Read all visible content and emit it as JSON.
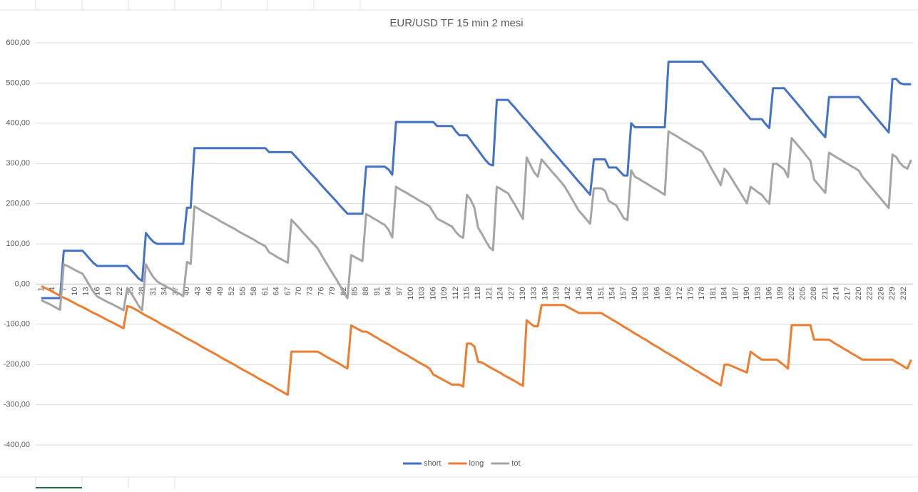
{
  "chart_data": {
    "type": "line",
    "title": "EUR/USD TF 15 min 2 mesi",
    "categories": [
      "1",
      null,
      null,
      "4",
      null,
      null,
      "7",
      null,
      null,
      "10",
      null,
      null,
      "13",
      null,
      null,
      "16",
      null,
      null,
      "19",
      null,
      null,
      "22",
      null,
      null,
      "25",
      null,
      null,
      "28",
      null,
      null,
      "31",
      null,
      null,
      "34",
      null,
      null,
      "37",
      null,
      null,
      "40",
      null,
      null,
      "43",
      null,
      null,
      "46",
      null,
      null,
      "49",
      null,
      null,
      "52",
      null,
      null,
      "55",
      null,
      null,
      "58",
      null,
      null,
      "61",
      null,
      null,
      "64",
      null,
      null,
      "67",
      null,
      null,
      "70",
      null,
      null,
      "73",
      null,
      null,
      "76",
      null,
      null,
      "79",
      null,
      null,
      "82",
      null,
      null,
      "85",
      null,
      null,
      "88",
      null,
      null,
      "91",
      null,
      null,
      "94",
      null,
      null,
      "97",
      null,
      null,
      "100",
      null,
      null,
      "103",
      null,
      null,
      "106",
      null,
      null,
      "109",
      null,
      null,
      "112",
      null,
      null,
      "115",
      null,
      null,
      "118",
      null,
      null,
      "121",
      null,
      null,
      "124",
      null,
      null,
      "127",
      null,
      null,
      "130",
      null,
      null,
      "133",
      null,
      null,
      "136",
      null,
      null,
      "139",
      null,
      null,
      "142",
      null,
      null,
      "145",
      null,
      null,
      "148",
      null,
      null,
      "151",
      null,
      null,
      "154",
      null,
      null,
      "157",
      null,
      null,
      "160",
      null,
      null,
      "163",
      null,
      null,
      "166",
      null,
      null,
      "169",
      null,
      null,
      "172",
      null,
      null,
      "175",
      null,
      null,
      "178",
      null,
      null,
      "181",
      null,
      null,
      "184",
      null,
      null,
      "187",
      null,
      null,
      "190",
      null,
      null,
      "193",
      null,
      null,
      "196",
      null,
      null,
      "199",
      null,
      null,
      "202",
      null,
      null,
      "205",
      null,
      null,
      "208",
      null,
      null,
      "211",
      null,
      null,
      "214",
      null,
      null,
      "217",
      null,
      null,
      "220",
      null,
      null,
      "223",
      null,
      null,
      "226",
      null,
      null,
      "229",
      null,
      null,
      "232",
      null,
      null
    ],
    "series": [
      {
        "name": "short",
        "color": "#4472c4",
        "values": [
          -35,
          -35,
          -35,
          -35,
          -35,
          -35,
          83,
          83,
          83,
          83,
          83,
          83,
          73,
          62,
          52,
          45,
          45,
          45,
          45,
          45,
          45,
          45,
          45,
          45,
          35,
          25,
          14,
          8,
          127,
          115,
          105,
          100,
          100,
          100,
          100,
          100,
          100,
          100,
          100,
          190,
          190,
          338,
          338,
          338,
          338,
          338,
          338,
          338,
          338,
          338,
          338,
          338,
          338,
          338,
          338,
          338,
          338,
          338,
          338,
          338,
          338,
          328,
          328,
          328,
          328,
          328,
          328,
          328,
          318,
          308,
          297,
          287,
          277,
          267,
          257,
          246,
          236,
          226,
          216,
          206,
          195,
          185,
          175,
          175,
          175,
          175,
          175,
          292,
          292,
          292,
          292,
          292,
          292,
          285,
          272,
          403,
          403,
          403,
          403,
          403,
          403,
          403,
          403,
          403,
          403,
          403,
          393,
          393,
          393,
          393,
          393,
          380,
          370,
          370,
          370,
          358,
          345,
          333,
          320,
          308,
          298,
          295,
          458,
          458,
          458,
          458,
          447,
          437,
          426,
          415,
          405,
          394,
          383,
          372,
          362,
          351,
          340,
          329,
          319,
          308,
          297,
          287,
          276,
          265,
          254,
          244,
          233,
          222,
          310,
          310,
          310,
          310,
          290,
          290,
          290,
          280,
          270,
          270,
          400,
          390,
          390,
          390,
          390,
          390,
          390,
          390,
          390,
          390,
          553,
          553,
          553,
          553,
          553,
          553,
          553,
          553,
          553,
          553,
          542,
          531,
          520,
          509,
          498,
          487,
          476,
          465,
          454,
          443,
          432,
          421,
          410,
          410,
          410,
          410,
          398,
          388,
          487,
          487,
          487,
          487,
          476,
          465,
          454,
          443,
          432,
          420,
          409,
          398,
          387,
          376,
          365,
          465,
          465,
          465,
          465,
          465,
          465,
          465,
          465,
          465,
          454,
          443,
          432,
          421,
          410,
          399,
          388,
          377,
          510,
          510,
          500,
          497,
          497,
          497
        ]
      },
      {
        "name": "long",
        "color": "#ed7d31",
        "values": [
          -5,
          -10,
          -14,
          -19,
          -24,
          -29,
          -34,
          -38,
          -43,
          -48,
          -53,
          -57,
          -62,
          -67,
          -72,
          -76,
          -81,
          -86,
          -91,
          -95,
          -100,
          -105,
          -110,
          -55,
          -57,
          -62,
          -67,
          -73,
          -78,
          -83,
          -88,
          -93,
          -99,
          -104,
          -109,
          -114,
          -119,
          -124,
          -130,
          -135,
          -140,
          -145,
          -150,
          -156,
          -161,
          -166,
          -171,
          -176,
          -182,
          -187,
          -192,
          -197,
          -202,
          -208,
          -213,
          -218,
          -223,
          -228,
          -234,
          -239,
          -244,
          -249,
          -254,
          -260,
          -265,
          -270,
          -275,
          -168,
          -168,
          -168,
          -168,
          -168,
          -168,
          -168,
          -168,
          -173,
          -179,
          -184,
          -189,
          -194,
          -199,
          -205,
          -210,
          -103,
          -108,
          -113,
          -118,
          -118,
          -123,
          -129,
          -134,
          -140,
          -145,
          -150,
          -156,
          -161,
          -167,
          -172,
          -177,
          -183,
          -188,
          -194,
          -199,
          -204,
          -210,
          -225,
          -230,
          -235,
          -240,
          -245,
          -250,
          -250,
          -250,
          -255,
          -148,
          -148,
          -155,
          -193,
          -195,
          -200,
          -206,
          -211,
          -216,
          -221,
          -227,
          -232,
          -237,
          -242,
          -248,
          -253,
          -90,
          -98,
          -105,
          -105,
          -52,
          -52,
          -52,
          -52,
          -52,
          -52,
          -52,
          -57,
          -62,
          -67,
          -72,
          -72,
          -72,
          -72,
          -72,
          -72,
          -72,
          -78,
          -83,
          -89,
          -94,
          -100,
          -106,
          -111,
          -117,
          -123,
          -128,
          -134,
          -139,
          -145,
          -151,
          -156,
          -162,
          -168,
          -173,
          -179,
          -184,
          -190,
          -196,
          -201,
          -207,
          -213,
          -218,
          -224,
          -229,
          -235,
          -241,
          -246,
          -252,
          -200,
          -200,
          -204,
          -208,
          -212,
          -216,
          -220,
          -168,
          -175,
          -182,
          -188,
          -188,
          -188,
          -188,
          -188,
          -195,
          -202,
          -210,
          -102,
          -102,
          -102,
          -102,
          -102,
          -102,
          -138,
          -138,
          -138,
          -138,
          -138,
          -144,
          -150,
          -155,
          -161,
          -166,
          -172,
          -177,
          -183,
          -188,
          -188,
          -188,
          -188,
          -188,
          -188,
          -188,
          -188,
          -188,
          -194,
          -199,
          -205,
          -210,
          -188
        ]
      },
      {
        "name": "tot",
        "color": "#a5a5a5",
        "values": [
          -40,
          -45,
          -49,
          -54,
          -59,
          -64,
          49,
          45,
          40,
          35,
          30,
          26,
          11,
          -5,
          -20,
          -31,
          -36,
          -41,
          -46,
          -50,
          -55,
          -60,
          -65,
          -10,
          -22,
          -37,
          -53,
          -65,
          49,
          32,
          17,
          7,
          1,
          -4,
          -9,
          -14,
          -19,
          -24,
          -30,
          55,
          50,
          193,
          188,
          182,
          177,
          172,
          167,
          162,
          156,
          151,
          146,
          141,
          136,
          130,
          125,
          120,
          115,
          110,
          104,
          99,
          94,
          79,
          74,
          68,
          63,
          58,
          53,
          160,
          150,
          140,
          129,
          119,
          109,
          99,
          89,
          73,
          57,
          42,
          27,
          12,
          -4,
          -20,
          -35,
          72,
          67,
          62,
          57,
          174,
          169,
          163,
          158,
          152,
          147,
          135,
          116,
          242,
          236,
          231,
          226,
          220,
          215,
          209,
          204,
          199,
          193,
          178,
          163,
          158,
          153,
          148,
          143,
          130,
          120,
          115,
          222,
          210,
          190,
          140,
          125,
          108,
          92,
          84,
          242,
          237,
          231,
          226,
          210,
          195,
          178,
          162,
          315,
          296,
          278,
          267,
          310,
          299,
          288,
          277,
          267,
          256,
          245,
          230,
          214,
          198,
          182,
          172,
          161,
          150,
          238,
          238,
          238,
          232,
          207,
          201,
          196,
          180,
          164,
          159,
          283,
          267,
          262,
          256,
          251,
          245,
          239,
          234,
          228,
          222,
          380,
          374,
          369,
          363,
          357,
          352,
          346,
          340,
          335,
          329,
          313,
          296,
          279,
          263,
          246,
          287,
          276,
          261,
          246,
          231,
          216,
          201,
          242,
          235,
          228,
          222,
          210,
          200,
          299,
          299,
          292,
          285,
          266,
          363,
          352,
          341,
          330,
          318,
          307,
          260,
          249,
          238,
          227,
          327,
          321,
          315,
          310,
          304,
          299,
          293,
          288,
          282,
          266,
          255,
          244,
          233,
          222,
          211,
          200,
          189,
          322,
          316,
          301,
          292,
          287,
          309
        ]
      }
    ],
    "ylim": [
      -400,
      600
    ],
    "yticks": [
      {
        "value": -400,
        "label": "-400,00"
      },
      {
        "value": -300,
        "label": "-300,00"
      },
      {
        "value": -200,
        "label": "-200,00"
      },
      {
        "value": -100,
        "label": "-100,00"
      },
      {
        "value": 0,
        "label": "0,00"
      },
      {
        "value": 100,
        "label": "100,00"
      },
      {
        "value": 200,
        "label": "200,00"
      },
      {
        "value": 300,
        "label": "300,00"
      },
      {
        "value": 400,
        "label": "400,00"
      },
      {
        "value": 500,
        "label": "500,00"
      },
      {
        "value": 600,
        "label": "600,00"
      }
    ],
    "grid": true,
    "legend": "bottom"
  }
}
